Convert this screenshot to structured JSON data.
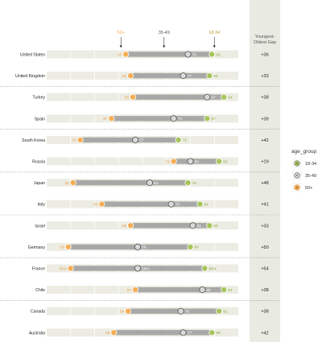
{
  "chart_data": {
    "type": "dot_range",
    "gap_column_title": [
      "Youngest-",
      "Oldest Gap"
    ],
    "series": [
      {
        "name": "18-34",
        "color": "#a6c45a",
        "top_label": "18-34"
      },
      {
        "name": "35-49",
        "color": "#9e9e9e",
        "top_label": "35-49"
      },
      {
        "name": "50+",
        "color": "#f5ad55",
        "top_label": "50+"
      }
    ],
    "legend_title": "age_group",
    "legend_position": "right",
    "rows": [
      {
        "country": "United States",
        "v50": 53,
        "v35": 79,
        "v18": 89,
        "gap": "+36",
        "l50": "53",
        "l35": "79",
        "l18": "89"
      },
      {
        "country": "United Kingdom",
        "v50": 55,
        "v35": 77,
        "v18": 88,
        "gap": "+33",
        "l50": "55",
        "l35": "77",
        "l18": "88"
      },
      {
        "country": "Turkey",
        "v50": 56,
        "v35": 87,
        "v18": 94,
        "gap": "+38",
        "l50": "56",
        "l35": "87",
        "l18": "94"
      },
      {
        "country": "Spain",
        "v50": 47,
        "v35": 73,
        "v18": 87,
        "gap": "+39",
        "l50": "47",
        "l35": "73",
        "l18": "87"
      },
      {
        "country": "South Korea",
        "v50": 34,
        "v35": 57,
        "v18": 75,
        "gap": "+42",
        "l50": "34",
        "l35": "57",
        "l18": "75"
      },
      {
        "country": "Russia",
        "v50": 73,
        "v35": 80,
        "v18": 92,
        "gap": "+19",
        "l50": "73",
        "l35": "80",
        "l18": "92"
      },
      {
        "country": "Japan",
        "v50": 31,
        "v35": 63,
        "v18": 79,
        "gap": "+48",
        "l50": "31",
        "l35": "63",
        "l18": "79"
      },
      {
        "country": "Italy",
        "v50": 43,
        "v35": 72,
        "v18": 84,
        "gap": "+41",
        "l50": "43",
        "l35": "72",
        "l18": "84"
      },
      {
        "country": "Israel",
        "v50": 55,
        "v35": 81,
        "v18": 88,
        "gap": "+33",
        "l50": "55",
        "l35": "81",
        "l18": "88"
      },
      {
        "country": "Germany",
        "v50": 29,
        "v35": 58,
        "v18": 80,
        "gap": "+50",
        "l50": "29",
        "l35": "58",
        "l18": "80"
      },
      {
        "country": "France",
        "v50": 30,
        "v35": 58,
        "v18": 86,
        "gap": "+54",
        "l50": "30%",
        "l35": "58%",
        "l18": "86%"
      },
      {
        "country": "Chile",
        "v50": 57,
        "v35": 85,
        "v18": 94,
        "gap": "+38",
        "l50": "57",
        "l35": "85",
        "l18": "94"
      },
      {
        "country": "Canada",
        "v50": 54,
        "v35": 76,
        "v18": 92,
        "gap": "+38",
        "l50": "54",
        "l35": "76",
        "l18": "92"
      },
      {
        "country": "Australia",
        "v50": 48,
        "v35": 77,
        "v18": 89,
        "gap": "+42",
        "l50": "48",
        "l35": "77",
        "l18": "89"
      }
    ],
    "xlim": [
      20,
      100
    ],
    "grid": true
  }
}
